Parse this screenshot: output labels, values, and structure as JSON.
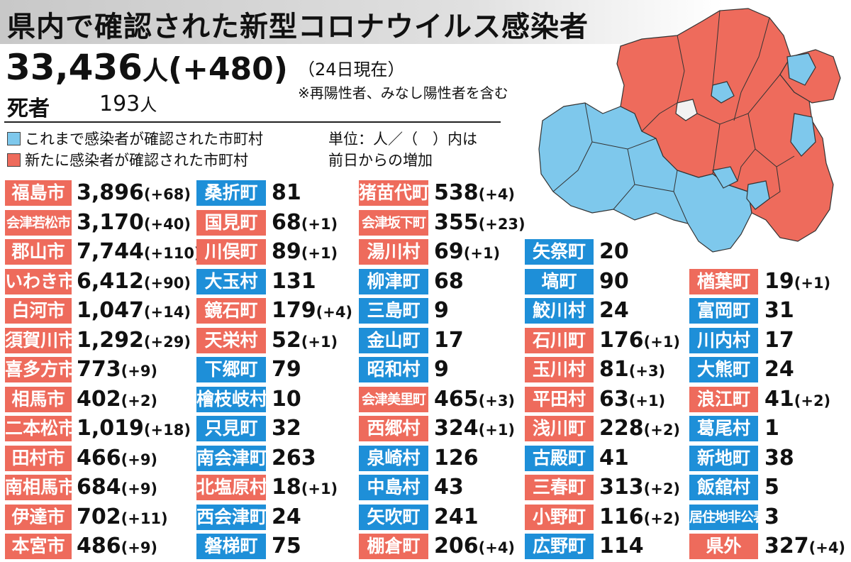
{
  "header": {
    "title": "県内で確認された新型コロナウイルス感染者",
    "total_count": "33,436",
    "total_unit": "人",
    "total_increase": "(+480)",
    "as_of": "（24日現在）",
    "note": "※再陽性者、みなし陽性者を含む",
    "deaths_label": "死者",
    "deaths_value": "193",
    "deaths_unit": "人"
  },
  "legend": {
    "confirmed_before": "これまで感染者が確認された市町村",
    "newly_confirmed": "新たに感染者が確認された市町村",
    "unit_note_1": "単位：人／（　）内は",
    "unit_note_2": "前日からの増加",
    "color_before": "#7ec8ec",
    "color_new": "#ee6b5c"
  },
  "columns": [
    [
      {
        "name": "福島市",
        "count": "3,896",
        "delta": "(+68)",
        "new": true
      },
      {
        "name": "会津若松市",
        "count": "3,170",
        "delta": "(+40)",
        "new": true
      },
      {
        "name": "郡山市",
        "count": "7,744",
        "delta": "(+110)",
        "new": true
      },
      {
        "name": "いわき市",
        "count": "6,412",
        "delta": "(+90)",
        "new": true
      },
      {
        "name": "白河市",
        "count": "1,047",
        "delta": "(+14)",
        "new": true
      },
      {
        "name": "須賀川市",
        "count": "1,292",
        "delta": "(+29)",
        "new": true
      },
      {
        "name": "喜多方市",
        "count": "773",
        "delta": "(+9)",
        "new": true
      },
      {
        "name": "相馬市",
        "count": "402",
        "delta": "(+2)",
        "new": true
      },
      {
        "name": "二本松市",
        "count": "1,019",
        "delta": "(+18)",
        "new": true
      },
      {
        "name": "田村市",
        "count": "466",
        "delta": "(+9)",
        "new": true
      },
      {
        "name": "南相馬市",
        "count": "684",
        "delta": "(+9)",
        "new": true
      },
      {
        "name": "伊達市",
        "count": "702",
        "delta": "(+11)",
        "new": true
      },
      {
        "name": "本宮市",
        "count": "486",
        "delta": "(+9)",
        "new": true
      }
    ],
    [
      {
        "name": "桑折町",
        "count": "81",
        "delta": "",
        "new": false
      },
      {
        "name": "国見町",
        "count": "68",
        "delta": "(+1)",
        "new": true
      },
      {
        "name": "川俣町",
        "count": "89",
        "delta": "(+1)",
        "new": true
      },
      {
        "name": "大玉村",
        "count": "131",
        "delta": "",
        "new": false
      },
      {
        "name": "鏡石町",
        "count": "179",
        "delta": "(+4)",
        "new": true
      },
      {
        "name": "天栄村",
        "count": "52",
        "delta": "(+1)",
        "new": true
      },
      {
        "name": "下郷町",
        "count": "79",
        "delta": "",
        "new": false
      },
      {
        "name": "檜枝岐村",
        "count": "10",
        "delta": "",
        "new": false
      },
      {
        "name": "只見町",
        "count": "32",
        "delta": "",
        "new": false
      },
      {
        "name": "南会津町",
        "count": "263",
        "delta": "",
        "new": false
      },
      {
        "name": "北塩原村",
        "count": "18",
        "delta": "(+1)",
        "new": true
      },
      {
        "name": "西会津町",
        "count": "24",
        "delta": "",
        "new": false
      },
      {
        "name": "磐梯町",
        "count": "75",
        "delta": "",
        "new": false
      }
    ],
    [
      {
        "name": "猪苗代町",
        "count": "538",
        "delta": "(+4)",
        "new": true
      },
      {
        "name": "会津坂下町",
        "count": "355",
        "delta": "(+23)",
        "new": true
      },
      {
        "name": "湯川村",
        "count": "69",
        "delta": "(+1)",
        "new": true
      },
      {
        "name": "柳津町",
        "count": "68",
        "delta": "",
        "new": false
      },
      {
        "name": "三島町",
        "count": "9",
        "delta": "",
        "new": false
      },
      {
        "name": "金山町",
        "count": "17",
        "delta": "",
        "new": false
      },
      {
        "name": "昭和村",
        "count": "9",
        "delta": "",
        "new": false
      },
      {
        "name": "会津美里町",
        "count": "465",
        "delta": "(+3)",
        "new": true
      },
      {
        "name": "西郷村",
        "count": "324",
        "delta": "(+1)",
        "new": true
      },
      {
        "name": "泉崎村",
        "count": "126",
        "delta": "",
        "new": false
      },
      {
        "name": "中島村",
        "count": "43",
        "delta": "",
        "new": false
      },
      {
        "name": "矢吹町",
        "count": "241",
        "delta": "",
        "new": false
      },
      {
        "name": "棚倉町",
        "count": "206",
        "delta": "(+4)",
        "new": true
      }
    ],
    [
      {
        "name": "矢祭町",
        "count": "20",
        "delta": "",
        "new": false
      },
      {
        "name": "塙町",
        "count": "90",
        "delta": "",
        "new": false
      },
      {
        "name": "鮫川村",
        "count": "24",
        "delta": "",
        "new": false
      },
      {
        "name": "石川町",
        "count": "176",
        "delta": "(+1)",
        "new": true
      },
      {
        "name": "玉川村",
        "count": "81",
        "delta": "(+3)",
        "new": true
      },
      {
        "name": "平田村",
        "count": "63",
        "delta": "(+1)",
        "new": true
      },
      {
        "name": "浅川町",
        "count": "228",
        "delta": "(+2)",
        "new": true
      },
      {
        "name": "古殿町",
        "count": "41",
        "delta": "",
        "new": false
      },
      {
        "name": "三春町",
        "count": "313",
        "delta": "(+2)",
        "new": true
      },
      {
        "name": "小野町",
        "count": "116",
        "delta": "(+2)",
        "new": true
      },
      {
        "name": "広野町",
        "count": "114",
        "delta": "",
        "new": false
      }
    ],
    [
      {
        "name": "楢葉町",
        "count": "19",
        "delta": "(+1)",
        "new": true
      },
      {
        "name": "富岡町",
        "count": "31",
        "delta": "",
        "new": false
      },
      {
        "name": "川内村",
        "count": "17",
        "delta": "",
        "new": false
      },
      {
        "name": "大熊町",
        "count": "24",
        "delta": "",
        "new": false
      },
      {
        "name": "浪江町",
        "count": "41",
        "delta": "(+2)",
        "new": true
      },
      {
        "name": "葛尾村",
        "count": "1",
        "delta": "",
        "new": false
      },
      {
        "name": "新地町",
        "count": "38",
        "delta": "",
        "new": false
      },
      {
        "name": "飯舘村",
        "count": "5",
        "delta": "",
        "new": false
      },
      {
        "name": "居住地非公表",
        "count": "3",
        "delta": "",
        "new": false
      },
      {
        "name": "県外",
        "count": "327",
        "delta": "(+4)",
        "new": true
      }
    ]
  ]
}
